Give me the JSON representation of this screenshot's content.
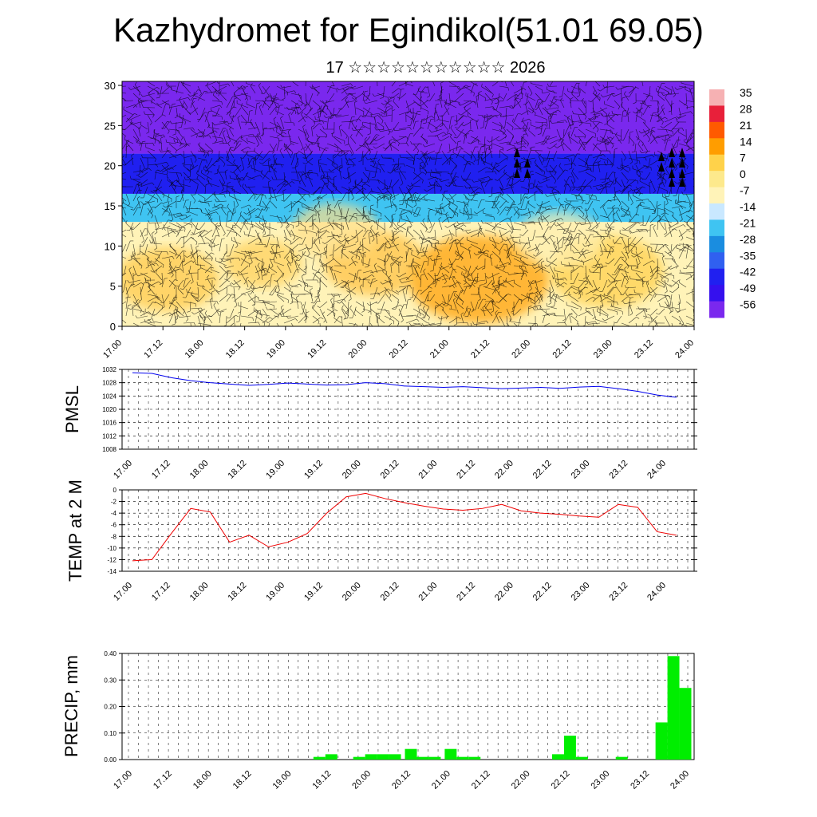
{
  "header": {
    "title": "Kazhydromet for Egindikol(51.01 69.05)",
    "subtitle": "17 ☆☆☆☆☆☆☆☆☆☆☆ 2026"
  },
  "time_ticks": [
    "17.00",
    "17.12",
    "18.00",
    "18.12",
    "19.00",
    "19.12",
    "20.00",
    "20.12",
    "21.00",
    "21.12",
    "22.00",
    "22.12",
    "23.00",
    "23.12",
    "24.00"
  ],
  "colorbar": {
    "labels": [
      "35",
      "28",
      "21",
      "14",
      "7",
      "0",
      "-7",
      "-14",
      "-21",
      "-28",
      "-35",
      "-42",
      "-49",
      "-56"
    ],
    "colors": [
      "#f6b1b3",
      "#e8203a",
      "#ff5a00",
      "#ff9d00",
      "#ffd24a",
      "#fde98c",
      "#fff3b8",
      "#c9e8ff",
      "#3fc4f2",
      "#1a8de0",
      "#3060f0",
      "#2020f0",
      "#3510ee",
      "#7a28ee"
    ]
  },
  "chart_data": [
    {
      "type": "heatmap",
      "name": "cross-section",
      "x_categories": [
        "17.00",
        "17.12",
        "18.00",
        "18.12",
        "19.00",
        "19.12",
        "20.00",
        "20.12",
        "21.00",
        "21.12",
        "22.00",
        "22.12",
        "23.00",
        "23.12",
        "24.00"
      ],
      "ylim": [
        0,
        30
      ],
      "yticks": [
        0,
        5,
        10,
        15,
        20,
        25,
        30
      ],
      "value_range": [
        -56,
        35
      ],
      "layers": [
        {
          "from": 0,
          "to": 13,
          "value": -7
        },
        {
          "from": 13,
          "to": 16.5,
          "value": -21
        },
        {
          "from": 16.5,
          "to": 21.5,
          "value": -42
        },
        {
          "from": 21.5,
          "to": 30.5,
          "value": -56
        }
      ]
    },
    {
      "type": "line",
      "ylabel": "PMSL",
      "ylim": [
        1008,
        1032
      ],
      "yticks": [
        1008,
        1012,
        1016,
        1020,
        1024,
        1028,
        1032
      ],
      "x": [
        0,
        1,
        2,
        3,
        4,
        5,
        6,
        7,
        8,
        9,
        10,
        11,
        12,
        13,
        14,
        15,
        16,
        17,
        18,
        19,
        20,
        21,
        22,
        23,
        24,
        25,
        26,
        27,
        28
      ],
      "series": [
        {
          "color": "#0000ee",
          "values": [
            1031,
            1030.8,
            1029.5,
            1028.6,
            1028,
            1027.6,
            1027.2,
            1027.5,
            1027.9,
            1027.6,
            1027.3,
            1027.4,
            1028,
            1027.7,
            1027,
            1026.8,
            1026.6,
            1026.8,
            1026.5,
            1026.2,
            1026.4,
            1026.6,
            1026.3,
            1026.7,
            1026.9,
            1026.2,
            1025.4,
            1024.3,
            1023.6
          ]
        }
      ]
    },
    {
      "type": "line",
      "ylabel": "TEMP at 2 M",
      "ylim": [
        -14,
        0
      ],
      "yticks": [
        0,
        -2,
        -4,
        -6,
        -8,
        -10,
        -12,
        -14
      ],
      "x": [
        0,
        1,
        2,
        3,
        4,
        5,
        6,
        7,
        8,
        9,
        10,
        11,
        12,
        13,
        14,
        15,
        16,
        17,
        18,
        19,
        20,
        21,
        22,
        23,
        24,
        25,
        26,
        27,
        28
      ],
      "series": [
        {
          "color": "#ee0000",
          "values": [
            -12.2,
            -12,
            -7.5,
            -3.2,
            -3.8,
            -9,
            -7.8,
            -9.8,
            -9,
            -7.5,
            -4,
            -1.2,
            -0.6,
            -1.5,
            -2.2,
            -2.8,
            -3.3,
            -3.5,
            -3.2,
            -2.5,
            -3.6,
            -4,
            -4.2,
            -4.5,
            -4.7,
            -2.5,
            -3,
            -7.2,
            -7.8
          ]
        }
      ]
    },
    {
      "type": "bar",
      "ylabel": "PRECIP, mm",
      "ylim": [
        0,
        0.4
      ],
      "yticks": [
        "0.00",
        "0.10",
        "0.20",
        "0.30",
        "0.40"
      ],
      "bars": [
        {
          "at": 4.7,
          "value": 0.01
        },
        {
          "at": 5.0,
          "value": 0.02
        },
        {
          "at": 5.7,
          "value": 0.01
        },
        {
          "at": 6.0,
          "value": 0.02
        },
        {
          "at": 6.3,
          "value": 0.02
        },
        {
          "at": 6.6,
          "value": 0.02
        },
        {
          "at": 7.0,
          "value": 0.04
        },
        {
          "at": 7.3,
          "value": 0.01
        },
        {
          "at": 7.6,
          "value": 0.01
        },
        {
          "at": 8.0,
          "value": 0.04
        },
        {
          "at": 8.3,
          "value": 0.01
        },
        {
          "at": 8.6,
          "value": 0.01
        },
        {
          "at": 10.7,
          "value": 0.02
        },
        {
          "at": 11.0,
          "value": 0.09
        },
        {
          "at": 11.3,
          "value": 0.01
        },
        {
          "at": 12.3,
          "value": 0.01
        },
        {
          "at": 13.3,
          "value": 0.14
        },
        {
          "at": 13.6,
          "value": 0.39
        },
        {
          "at": 13.9,
          "value": 0.27
        }
      ],
      "bar_color": "#00ee00"
    }
  ]
}
